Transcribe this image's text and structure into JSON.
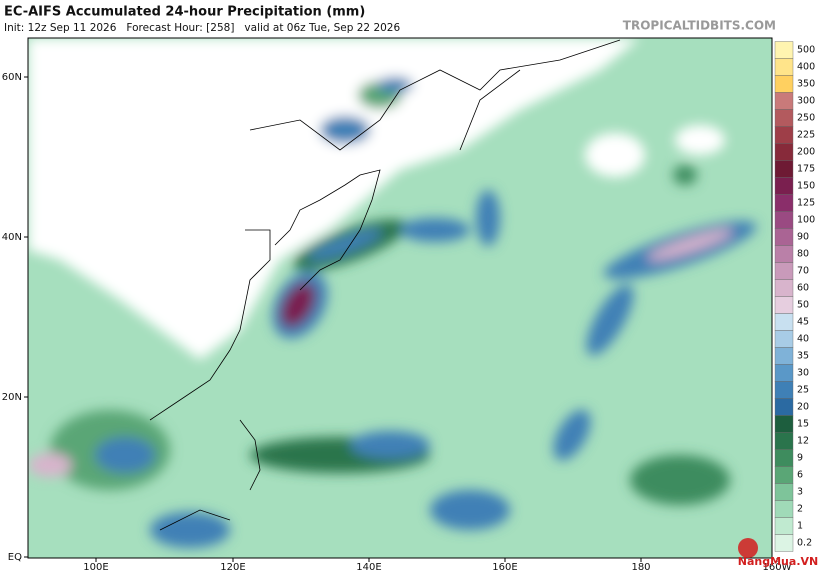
{
  "header": {
    "title": "EC-AIFS Accumulated 24-hour Precipitation (mm)",
    "subtitle": "Init: 12z Sep 11 2026   Forecast Hour: [258]   valid at 06z Tue, Sep 22 2026",
    "watermark": "TROPICALTIDBITS.COM"
  },
  "map": {
    "lat_labels": [
      "60N",
      "40N",
      "20N",
      "EQ"
    ],
    "lon_labels": [
      "100E",
      "120E",
      "140E",
      "160E",
      "180",
      "160W"
    ]
  },
  "colorbar": {
    "levels": [
      {
        "label": 500,
        "color": "#fff4b0"
      },
      {
        "label": 400,
        "color": "#ffe48a"
      },
      {
        "label": 350,
        "color": "#ffd060"
      },
      {
        "label": 300,
        "color": "#c97a7a"
      },
      {
        "label": 250,
        "color": "#b35a5e"
      },
      {
        "label": 225,
        "color": "#9e3e48"
      },
      {
        "label": 200,
        "color": "#872a3a"
      },
      {
        "label": 175,
        "color": "#6e1a34"
      },
      {
        "label": 150,
        "color": "#7a1f4f"
      },
      {
        "label": 125,
        "color": "#8a2e6a"
      },
      {
        "label": 100,
        "color": "#9a4a82"
      },
      {
        "label": 90,
        "color": "#aa6494"
      },
      {
        "label": 80,
        "color": "#ba80a8"
      },
      {
        "label": 70,
        "color": "#c99aba"
      },
      {
        "label": 60,
        "color": "#d8b4cc"
      },
      {
        "label": 50,
        "color": "#e6cedf"
      },
      {
        "label": 45,
        "color": "#c8e0f0"
      },
      {
        "label": 40,
        "color": "#a8cce6"
      },
      {
        "label": 35,
        "color": "#7fb2d8"
      },
      {
        "label": 30,
        "color": "#5a98c8"
      },
      {
        "label": 25,
        "color": "#3f80b6"
      },
      {
        "label": 20,
        "color": "#2b6aa2"
      },
      {
        "label": 15,
        "color": "#1d5e3e"
      },
      {
        "label": 12,
        "color": "#2a744c"
      },
      {
        "label": 9,
        "color": "#3e8c5e"
      },
      {
        "label": 6,
        "color": "#5aa676"
      },
      {
        "label": 3,
        "color": "#7ec49a"
      },
      {
        "label": 2,
        "color": "#a0dab8"
      },
      {
        "label": 1,
        "color": "#c0ead0"
      },
      {
        "label": 0.2,
        "color": "#dcf4e4"
      }
    ]
  },
  "logo": "NangMua.VN"
}
